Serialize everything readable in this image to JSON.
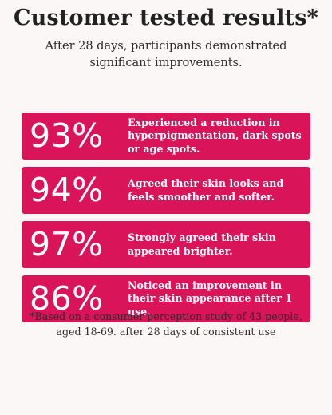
{
  "header": {
    "title": "Customer tested results*",
    "subtitle": "After 28 days, participants demonstrated significant improvements."
  },
  "colors": {
    "card_background": "#da1458",
    "page_background": "#fbf7f7"
  },
  "stats": [
    {
      "value": "93%",
      "text": "Experienced a reduction in hyperpigmentation, dark spots or age spots."
    },
    {
      "value": "94%",
      "text": "Agreed their skin looks and feels smoother and softer."
    },
    {
      "value": "97%",
      "text": "Strongly agreed their skin appeared brighter."
    },
    {
      "value": "86%",
      "text": "Noticed an improvement in their skin appearance after 1 use."
    }
  ],
  "footnote": "*Based on a consumer perception study of 43 people, aged 18-69. after 28 days of consistent use"
}
